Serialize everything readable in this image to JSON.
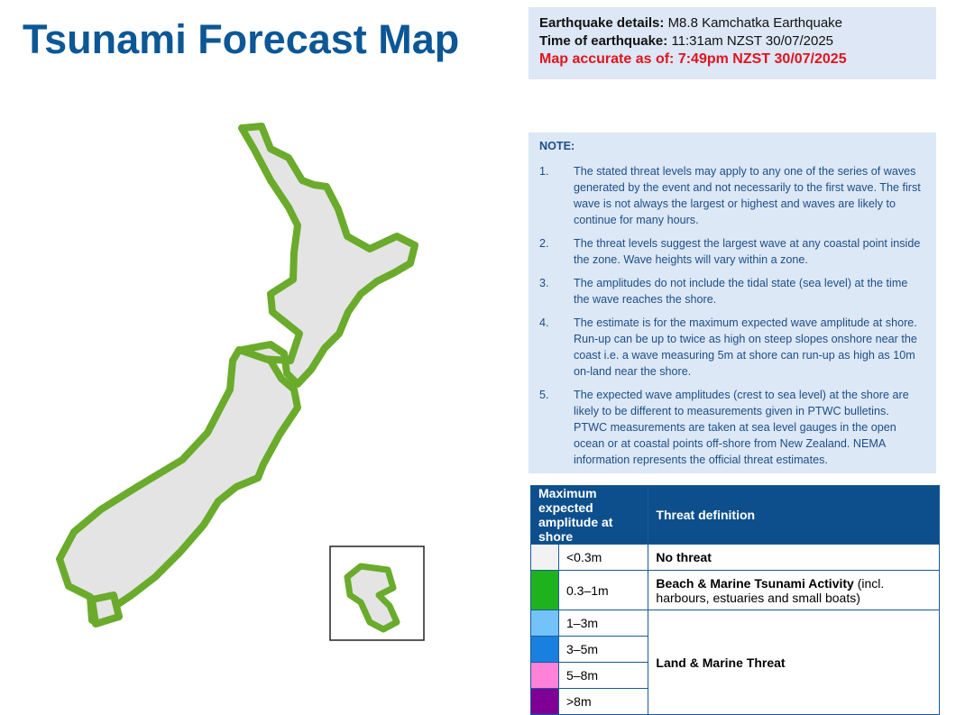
{
  "header": {
    "title": "Tsunami Forecast Map"
  },
  "details": {
    "earthquake_label": "Earthquake details:",
    "earthquake_value": "M8.8 Kamchatka Earthquake",
    "time_label": "Time of earthquake:",
    "time_value": "11:31am NZST 30/07/2025",
    "accuracy": "Map accurate as of: 7:49pm NZST 30/07/2025"
  },
  "note": {
    "title": "NOTE:",
    "items": [
      {
        "number": "1.",
        "text": "The stated threat levels may apply to any one of the series of waves generated by the event and not necessarily to the first wave. The first wave is not always the largest or highest and waves are likely to continue for many hours."
      },
      {
        "number": "2.",
        "text": "The threat levels suggest the largest wave at any coastal point inside the zone. Wave heights will vary within a zone."
      },
      {
        "number": "3.",
        "text": "The amplitudes do not include the tidal state (sea level) at the time the wave reaches the shore."
      },
      {
        "number": "4.",
        "text": "The estimate is for the maximum expected wave amplitude at shore. Run-up can be up to twice as high on steep slopes onshore near the coast i.e. a wave measuring 5m at shore can run-up as high as 10m on-land near the shore."
      },
      {
        "number": "5.",
        "text": "The expected wave amplitudes (crest to sea level) at the shore are likely to be different to measurements given in PTWC bulletins. PTWC measurements are taken at sea level gauges in the open ocean or at coastal points off-shore from New Zealand. NEMA information represents the official threat estimates."
      }
    ]
  },
  "legend": {
    "headers": [
      "Maximum expected amplitude at shore",
      "Threat definition"
    ],
    "rows": [
      {
        "amplitude": "<0.3m",
        "color": "#f2f2f2"
      },
      {
        "amplitude": "0.3–1m",
        "color": "#1fb21f"
      },
      {
        "amplitude": "1–3m",
        "color": "#74c2fa"
      },
      {
        "amplitude": "3–5m",
        "color": "#1a80e0"
      },
      {
        "amplitude": "5–8m",
        "color": "#ff82d9"
      },
      {
        "amplitude": ">8m",
        "color": "#7f0094"
      }
    ],
    "threats": [
      {
        "title": "No threat",
        "detail": null
      },
      {
        "title": "Beach & Marine Tsunami Activity",
        "detail": "(incl. harbours, estuaries and small boats)"
      },
      {
        "title": "Land & Marine Threat",
        "detail": null
      }
    ]
  }
}
